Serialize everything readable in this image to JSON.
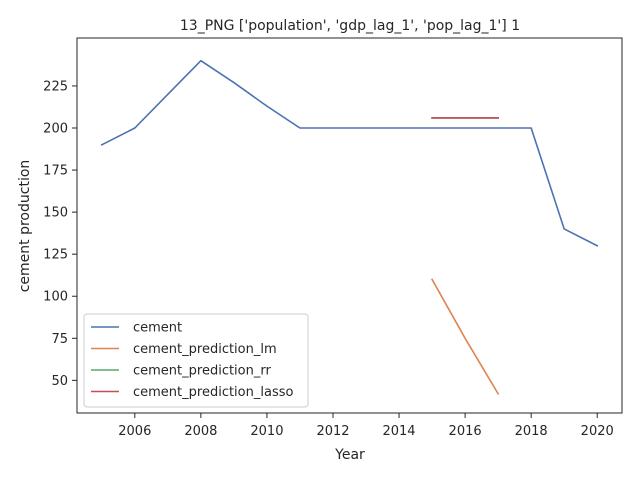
{
  "chart_data": {
    "type": "line",
    "title": "13_PNG ['population', 'gdp_lag_1', 'pop_lag_1'] 1",
    "xlabel": "Year",
    "ylabel": "cement production",
    "xlim": [
      2004.25,
      2020.75
    ],
    "ylim": [
      30.6,
      253.5
    ],
    "xticks": [
      2006,
      2008,
      2010,
      2012,
      2014,
      2016,
      2018,
      2020
    ],
    "yticks": [
      50,
      75,
      100,
      125,
      150,
      175,
      200,
      225
    ],
    "grid": false,
    "legend_position": "lower-left",
    "series": [
      {
        "name": "cement",
        "color": "#4c72b0",
        "x": [
          2005,
          2006,
          2007,
          2008,
          2009,
          2010,
          2011,
          2012,
          2013,
          2014,
          2015,
          2016,
          2017,
          2018,
          2019,
          2020
        ],
        "y": [
          190,
          200,
          220,
          240,
          227,
          213,
          200,
          200,
          200,
          200,
          200,
          200,
          200,
          200,
          140,
          130
        ]
      },
      {
        "name": "cement_prediction_lm",
        "color": "#dd8452",
        "x": [
          2015,
          2016,
          2017
        ],
        "y": [
          110,
          75,
          42
        ]
      },
      {
        "name": "cement_prediction_rr",
        "color": "#55a868",
        "x": [
          2015,
          2016,
          2017
        ],
        "y": [
          206,
          206,
          206
        ]
      },
      {
        "name": "cement_prediction_lasso",
        "color": "#c44e52",
        "x": [
          2015,
          2016,
          2017
        ],
        "y": [
          206,
          206,
          206
        ]
      }
    ]
  }
}
